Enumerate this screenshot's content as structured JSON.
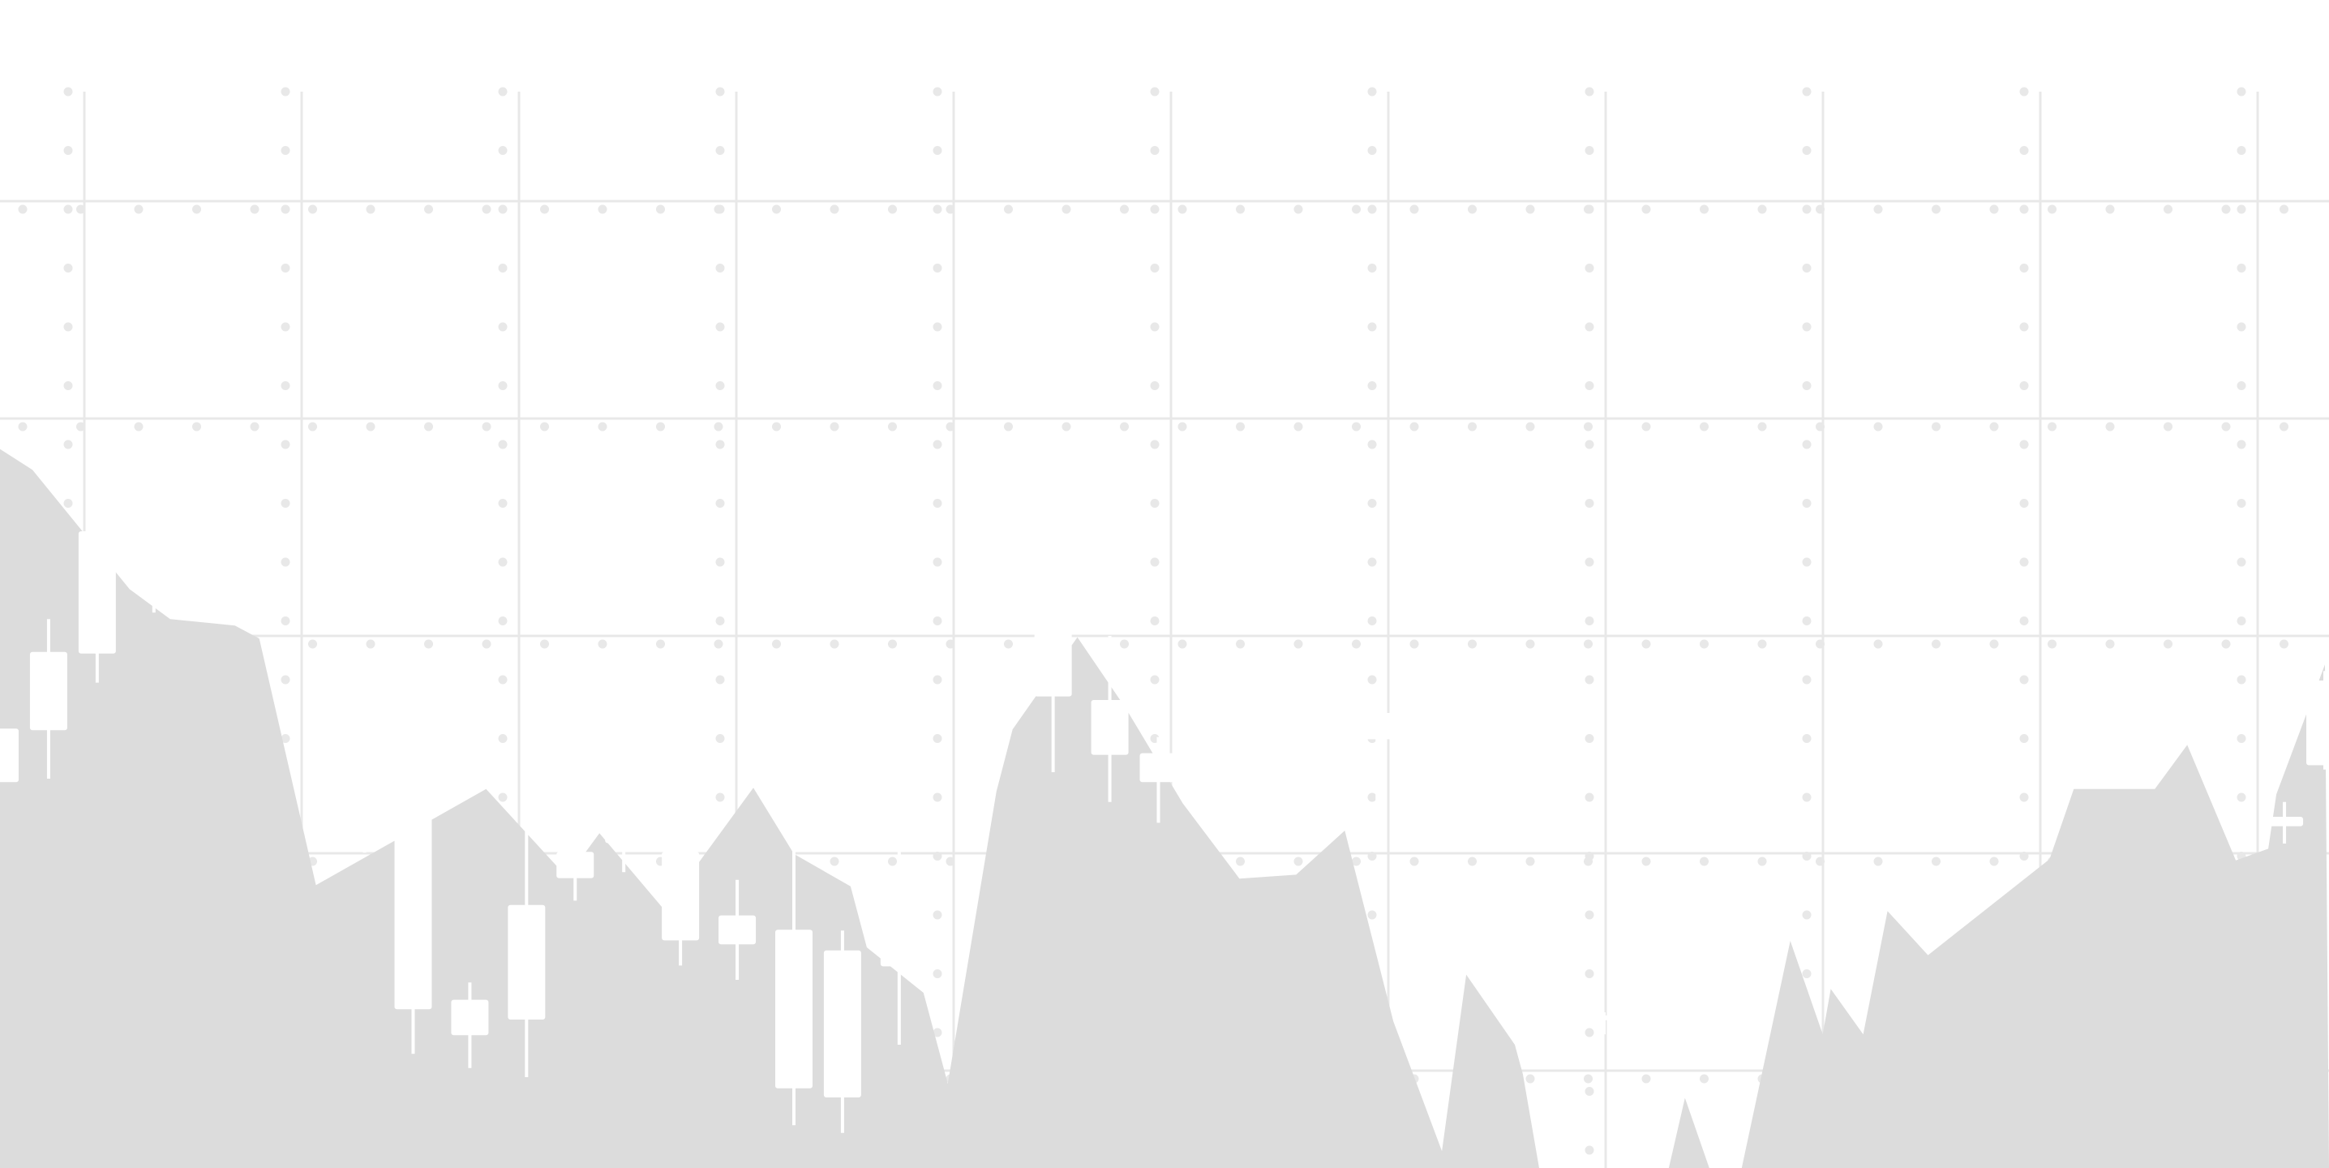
{
  "chart_data": {
    "type": "candlestick",
    "title": "",
    "xlabel": "",
    "ylabel": "",
    "ylim": [
      0,
      100
    ],
    "grid": true,
    "legend": "none",
    "colors": {
      "background": "#ffffff",
      "grid": "#e8e8e8",
      "dots": "#e8e8e8",
      "area": "#dcdcdc",
      "candle": "#ffffff"
    },
    "area_series": [
      {
        "x": 0,
        "y": 55.4
      },
      {
        "x": 0.4,
        "y": 53.8
      },
      {
        "x": 1.6,
        "y": 44.6
      },
      {
        "x": 2.1,
        "y": 42.3
      },
      {
        "x": 2.9,
        "y": 41.8
      },
      {
        "x": 3.2,
        "y": 40.8
      },
      {
        "x": 3.9,
        "y": 21.8
      },
      {
        "x": 6.0,
        "y": 29.2
      },
      {
        "x": 7.0,
        "y": 22.4
      },
      {
        "x": 7.4,
        "y": 25.8
      },
      {
        "x": 8.2,
        "y": 19.9
      },
      {
        "x": 9.3,
        "y": 29.3
      },
      {
        "x": 9.8,
        "y": 24.2
      },
      {
        "x": 10.5,
        "y": 21.7
      },
      {
        "x": 10.7,
        "y": 17.0
      },
      {
        "x": 11.4,
        "y": 13.5
      },
      {
        "x": 11.7,
        "y": 6.5
      },
      {
        "x": 12.3,
        "y": 29.0
      },
      {
        "x": 12.5,
        "y": 33.8
      },
      {
        "x": 13.3,
        "y": 40.9
      },
      {
        "x": 13.9,
        "y": 35.4
      },
      {
        "x": 14.6,
        "y": 28.1
      },
      {
        "x": 15.3,
        "y": 22.3
      },
      {
        "x": 16.0,
        "y": 22.6
      },
      {
        "x": 16.6,
        "y": 26.0
      },
      {
        "x": 17.2,
        "y": 11.3
      },
      {
        "x": 17.8,
        "y": 1.3
      },
      {
        "x": 18.1,
        "y": 14.9
      },
      {
        "x": 18.7,
        "y": 9.5
      },
      {
        "x": 18.8,
        "y": 7.2
      },
      {
        "x": 19.0,
        "y": 0.0
      },
      {
        "x": 20.6,
        "y": 0.0
      },
      {
        "x": 20.8,
        "y": 5.4
      },
      {
        "x": 21.1,
        "y": 0.0
      },
      {
        "x": 21.5,
        "y": 0.0
      },
      {
        "x": 22.1,
        "y": 17.5
      },
      {
        "x": 22.5,
        "y": 10.3
      },
      {
        "x": 22.6,
        "y": 13.8
      },
      {
        "x": 23.0,
        "y": 10.3
      },
      {
        "x": 23.3,
        "y": 19.8
      },
      {
        "x": 23.8,
        "y": 16.4
      },
      {
        "x": 25.3,
        "y": 23.8
      },
      {
        "x": 25.6,
        "y": 29.2
      },
      {
        "x": 26.6,
        "y": 29.2
      },
      {
        "x": 27.0,
        "y": 32.6
      },
      {
        "x": 27.6,
        "y": 23.7
      },
      {
        "x": 28.0,
        "y": 24.6
      },
      {
        "x": 28.1,
        "y": 28.8
      },
      {
        "x": 28.7,
        "y": 38.8
      }
    ],
    "candles": [
      {
        "x": 0.0,
        "open": 29.8,
        "close": 33.8,
        "high": 33.8,
        "low": 29.8
      },
      {
        "x": 0.6,
        "open": 33.8,
        "close": 39.7,
        "high": 42.3,
        "low": 30.0
      },
      {
        "x": 1.2,
        "open": 39.7,
        "close": 49.0,
        "high": 51.4,
        "low": 37.4
      },
      {
        "x": 1.9,
        "open": 49.0,
        "close": 54.8,
        "high": 55.1,
        "low": 42.8
      },
      {
        "x": 2.5,
        "open": 54.8,
        "close": 55.9,
        "high": 56.2,
        "low": 54.5
      },
      {
        "x": 3.2,
        "open": 55.5,
        "close": 49.9,
        "high": 56.1,
        "low": 47.9
      },
      {
        "x": 4.5,
        "open": 32.8,
        "close": 29.7,
        "high": 33.9,
        "low": 24.3
      },
      {
        "x": 5.1,
        "open": 30.6,
        "close": 12.3,
        "high": 31.1,
        "low": 8.8
      },
      {
        "x": 5.8,
        "open": 12.9,
        "close": 10.3,
        "high": 14.3,
        "low": 7.7
      },
      {
        "x": 6.5,
        "open": 20.2,
        "close": 11.5,
        "high": 30.2,
        "low": 7.0
      },
      {
        "x": 7.1,
        "open": 24.3,
        "close": 22.4,
        "high": 26.4,
        "low": 20.6
      },
      {
        "x": 7.7,
        "open": 26.4,
        "close": 25.1,
        "high": 28.9,
        "low": 22.8
      },
      {
        "x": 8.4,
        "open": 24.3,
        "close": 17.6,
        "high": 24.6,
        "low": 15.6
      },
      {
        "x": 9.1,
        "open": 19.4,
        "close": 17.3,
        "high": 22.2,
        "low": 14.5
      },
      {
        "x": 9.8,
        "open": 18.3,
        "close": 6.2,
        "high": 25.3,
        "low": 3.3
      },
      {
        "x": 10.4,
        "open": 16.7,
        "close": 5.5,
        "high": 18.3,
        "low": 2.7
      },
      {
        "x": 11.1,
        "open": 17.3,
        "close": 15.6,
        "high": 33.9,
        "low": 9.5
      },
      {
        "x": 12.5,
        "open": 43.6,
        "close": 46.6,
        "high": 47.3,
        "low": 44.1
      },
      {
        "x": 13.0,
        "open": 36.4,
        "close": 45.9,
        "high": 49.1,
        "low": 30.5
      },
      {
        "x": 13.7,
        "open": 31.9,
        "close": 36.0,
        "high": 41.0,
        "low": 28.2
      },
      {
        "x": 14.3,
        "open": 29.8,
        "close": 31.9,
        "high": 33.2,
        "low": 26.6
      },
      {
        "x": 15.0,
        "open": 32.9,
        "close": 34.3,
        "high": 34.5,
        "low": 30.4
      },
      {
        "x": 17.0,
        "open": 35.0,
        "close": 33.1,
        "high": 36.6,
        "low": 26.1
      },
      {
        "x": 18.3,
        "open": 18.3,
        "close": 17.8,
        "high": 18.6,
        "low": 15.4
      },
      {
        "x": 18.8,
        "open": 13.8,
        "close": 13.5,
        "high": 13.9,
        "low": 11.7
      },
      {
        "x": 19.8,
        "open": 11.7,
        "close": 11.5,
        "high": 12.0,
        "low": 10.3
      },
      {
        "x": 28.2,
        "open": 26.4,
        "close": 27.0,
        "high": 28.2,
        "low": 25.0
      },
      {
        "x": 28.7,
        "open": 31.1,
        "close": 37.5,
        "high": 38.3,
        "low": 30.7
      }
    ]
  }
}
